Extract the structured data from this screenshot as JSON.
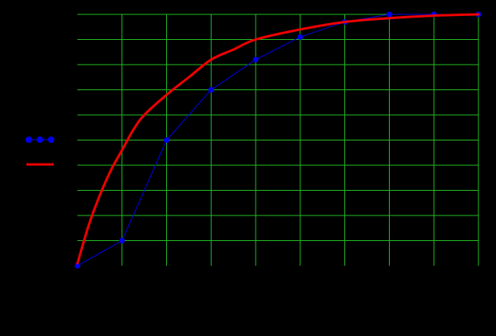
{
  "colors": {
    "background": "#000000",
    "grid": "#22bb22",
    "series_markers": "#0000ee",
    "series_curve": "#ee0000"
  },
  "chart_data": {
    "type": "line",
    "title": "",
    "xlabel": "",
    "ylabel": "",
    "xlim": [
      0,
      9
    ],
    "ylim": [
      0,
      1
    ],
    "grid": true,
    "x_grid_count": 9,
    "y_grid_count": 10,
    "legend": {
      "placement": "left",
      "entries": [
        {
          "series_index": 0,
          "style": "markers"
        },
        {
          "series_index": 1,
          "style": "line"
        }
      ]
    },
    "series": [
      {
        "style": "line-markers",
        "color": "#0000ee",
        "x": [
          0,
          1,
          2,
          3,
          4,
          5,
          6,
          7,
          8,
          9
        ],
        "y": [
          0.0,
          0.1,
          0.5,
          0.7,
          0.82,
          0.91,
          0.97,
          1.0,
          1.0,
          1.0
        ]
      },
      {
        "style": "smooth",
        "color": "#ee0000",
        "x": [
          0,
          0.25,
          0.5,
          0.75,
          1,
          1.25,
          1.5,
          2,
          2.5,
          3,
          3.5,
          4,
          5,
          6,
          7,
          8,
          9
        ],
        "y": [
          0.01,
          0.16,
          0.28,
          0.38,
          0.46,
          0.54,
          0.6,
          0.68,
          0.75,
          0.82,
          0.86,
          0.9,
          0.94,
          0.97,
          0.985,
          0.995,
          1.0
        ]
      }
    ]
  }
}
